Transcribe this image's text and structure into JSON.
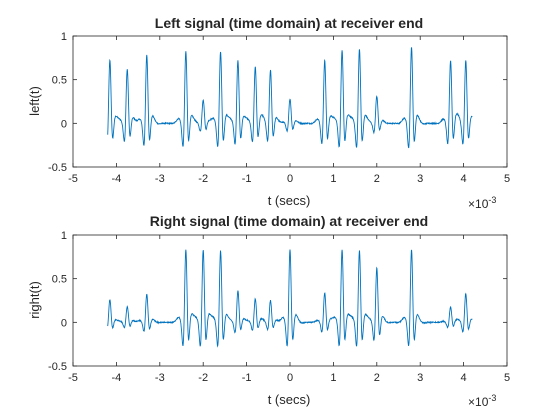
{
  "figure": {
    "background": "#ffffff",
    "line_color": "#0072bd",
    "axis_color": "#262626"
  },
  "chart_data": [
    {
      "type": "line",
      "title": "Left signal (time domain) at receiver end",
      "xlabel": "t (secs)",
      "ylabel": "left(t)",
      "x_exponent_base": "10",
      "x_exponent_power": "-3",
      "xlim": [
        -5,
        5
      ],
      "ylim": [
        -0.5,
        1
      ],
      "xticks": [
        "-5",
        "-4",
        "-3",
        "-2",
        "-1",
        "0",
        "1",
        "2",
        "3",
        "4",
        "5"
      ],
      "yticks": [
        "-0.5",
        "0",
        "0.5",
        "1"
      ],
      "x_data_range": [
        -4.2,
        4.2
      ],
      "grid": false,
      "x_scale_note": "x values in units of 1e-3 s",
      "pulses": [
        {
          "x": -4.15,
          "peak": 0.72
        },
        {
          "x": -3.75,
          "peak": 0.62
        },
        {
          "x": -3.3,
          "peak": 0.78
        },
        {
          "x": -2.4,
          "peak": 0.82
        },
        {
          "x": -2.0,
          "peak": 0.27
        },
        {
          "x": -1.6,
          "peak": 0.82
        },
        {
          "x": -1.2,
          "peak": 0.72
        },
        {
          "x": -0.8,
          "peak": 0.65
        },
        {
          "x": -0.45,
          "peak": 0.61
        },
        {
          "x": 0.0,
          "peak": 0.28
        },
        {
          "x": 0.8,
          "peak": 0.72
        },
        {
          "x": 1.2,
          "peak": 0.83
        },
        {
          "x": 1.6,
          "peak": 0.85
        },
        {
          "x": 2.0,
          "peak": 0.31
        },
        {
          "x": 2.8,
          "peak": 0.87
        },
        {
          "x": 3.7,
          "peak": 0.72
        },
        {
          "x": 4.05,
          "peak": 0.72
        }
      ]
    },
    {
      "type": "line",
      "title": "Right signal (time domain) at receiver end",
      "xlabel": "t (secs)",
      "ylabel": "right(t)",
      "x_exponent_base": "10",
      "x_exponent_power": "-3",
      "xlim": [
        -5,
        5
      ],
      "ylim": [
        -0.5,
        1
      ],
      "xticks": [
        "-5",
        "-4",
        "-3",
        "-2",
        "-1",
        "0",
        "1",
        "2",
        "3",
        "4",
        "5"
      ],
      "yticks": [
        "-0.5",
        "0",
        "0.5",
        "1"
      ],
      "x_data_range": [
        -4.2,
        4.2
      ],
      "grid": false,
      "x_scale_note": "x values in units of 1e-3 s",
      "pulses": [
        {
          "x": -4.15,
          "peak": 0.26
        },
        {
          "x": -3.75,
          "peak": 0.18
        },
        {
          "x": -3.3,
          "peak": 0.32
        },
        {
          "x": -2.4,
          "peak": 0.83
        },
        {
          "x": -2.0,
          "peak": 0.83
        },
        {
          "x": -1.6,
          "peak": 0.82
        },
        {
          "x": -1.2,
          "peak": 0.36
        },
        {
          "x": -0.8,
          "peak": 0.27
        },
        {
          "x": -0.45,
          "peak": 0.25
        },
        {
          "x": 0.0,
          "peak": 0.83
        },
        {
          "x": 0.8,
          "peak": 0.34
        },
        {
          "x": 1.2,
          "peak": 0.83
        },
        {
          "x": 1.6,
          "peak": 0.82
        },
        {
          "x": 2.0,
          "peak": 0.62
        },
        {
          "x": 2.8,
          "peak": 0.83
        },
        {
          "x": 3.7,
          "peak": 0.18
        },
        {
          "x": 4.05,
          "peak": 0.33
        }
      ]
    }
  ]
}
